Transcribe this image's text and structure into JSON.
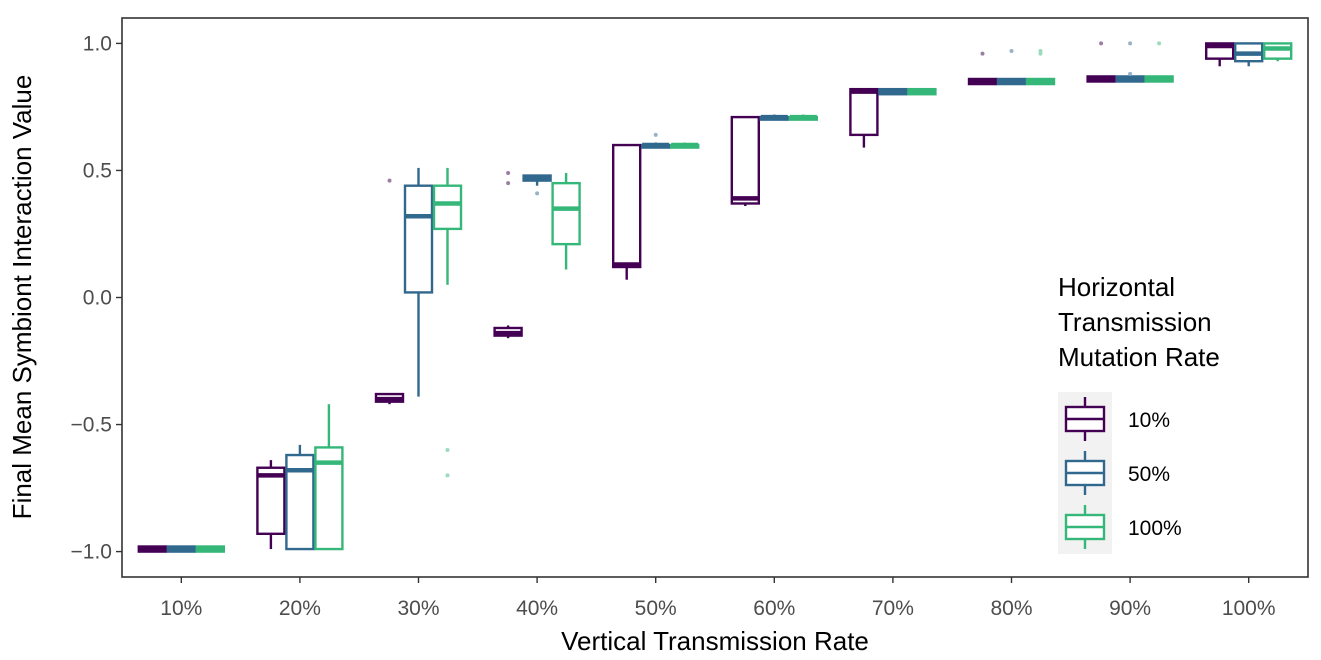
{
  "chart_data": {
    "type": "box",
    "xlabel": "Vertical Transmission Rate",
    "ylabel": "Final Mean Symbiont Interaction Value",
    "categories": [
      "10%",
      "20%",
      "30%",
      "40%",
      "50%",
      "60%",
      "70%",
      "80%",
      "90%",
      "100%"
    ],
    "ylim": [
      -1.1,
      1.1
    ],
    "yticks": [
      -1.0,
      -0.5,
      0.0,
      0.5,
      1.0
    ],
    "ytick_labels": [
      "−1.0",
      "−0.5",
      "0.0",
      "0.5",
      "1.0"
    ],
    "grid": false,
    "legend": {
      "title_lines": [
        "Horizontal",
        "Transmission",
        "Mutation Rate"
      ],
      "position": "right"
    },
    "series": [
      {
        "name": "10%",
        "color": "#440154",
        "outlier_color": "#9b7fa3",
        "boxes": [
          {
            "whisker_low": -1.0,
            "q1": -1.0,
            "median": -0.99,
            "q3": -0.98,
            "whisker_high": -0.98,
            "outliers": []
          },
          {
            "whisker_low": -0.99,
            "q1": -0.93,
            "median": -0.7,
            "q3": -0.67,
            "whisker_high": -0.64,
            "outliers": []
          },
          {
            "whisker_low": -0.42,
            "q1": -0.41,
            "median": -0.4,
            "q3": -0.38,
            "whisker_high": -0.38,
            "outliers": [
              0.46
            ]
          },
          {
            "whisker_low": -0.16,
            "q1": -0.15,
            "median": -0.14,
            "q3": -0.12,
            "whisker_high": -0.11,
            "outliers": [
              0.45,
              0.49
            ]
          },
          {
            "whisker_low": 0.07,
            "q1": 0.12,
            "median": 0.13,
            "q3": 0.6,
            "whisker_high": 0.6,
            "outliers": []
          },
          {
            "whisker_low": 0.36,
            "q1": 0.37,
            "median": 0.39,
            "q3": 0.71,
            "whisker_high": 0.71,
            "outliers": []
          },
          {
            "whisker_low": 0.59,
            "q1": 0.64,
            "median": 0.81,
            "q3": 0.82,
            "whisker_high": 0.82,
            "outliers": []
          },
          {
            "whisker_low": 0.84,
            "q1": 0.84,
            "median": 0.85,
            "q3": 0.86,
            "whisker_high": 0.86,
            "outliers": [
              0.96
            ]
          },
          {
            "whisker_low": 0.85,
            "q1": 0.85,
            "median": 0.86,
            "q3": 0.87,
            "whisker_high": 0.87,
            "outliers": [
              1.0
            ]
          },
          {
            "whisker_low": 0.91,
            "q1": 0.94,
            "median": 0.99,
            "q3": 1.0,
            "whisker_high": 1.0,
            "outliers": []
          }
        ]
      },
      {
        "name": "50%",
        "color": "#31688e",
        "outlier_color": "#98b3c6",
        "boxes": [
          {
            "whisker_low": -1.0,
            "q1": -1.0,
            "median": -0.99,
            "q3": -0.98,
            "whisker_high": -0.98,
            "outliers": []
          },
          {
            "whisker_low": -0.99,
            "q1": -0.99,
            "median": -0.68,
            "q3": -0.62,
            "whisker_high": -0.58,
            "outliers": []
          },
          {
            "whisker_low": -0.39,
            "q1": 0.02,
            "median": 0.32,
            "q3": 0.44,
            "whisker_high": 0.51,
            "outliers": []
          },
          {
            "whisker_low": 0.44,
            "q1": 0.46,
            "median": 0.47,
            "q3": 0.48,
            "whisker_high": 0.48,
            "outliers": [
              0.41
            ]
          },
          {
            "whisker_low": 0.59,
            "q1": 0.59,
            "median": 0.6,
            "q3": 0.6,
            "whisker_high": 0.61,
            "outliers": [
              0.64
            ]
          },
          {
            "whisker_low": 0.7,
            "q1": 0.7,
            "median": 0.71,
            "q3": 0.71,
            "whisker_high": 0.72,
            "outliers": []
          },
          {
            "whisker_low": 0.8,
            "q1": 0.8,
            "median": 0.81,
            "q3": 0.82,
            "whisker_high": 0.82,
            "outliers": []
          },
          {
            "whisker_low": 0.84,
            "q1": 0.84,
            "median": 0.85,
            "q3": 0.86,
            "whisker_high": 0.86,
            "outliers": [
              0.97
            ]
          },
          {
            "whisker_low": 0.85,
            "q1": 0.85,
            "median": 0.86,
            "q3": 0.87,
            "whisker_high": 0.87,
            "outliers": [
              1.0,
              0.88
            ]
          },
          {
            "whisker_low": 0.91,
            "q1": 0.93,
            "median": 0.96,
            "q3": 1.0,
            "whisker_high": 1.0,
            "outliers": []
          }
        ]
      },
      {
        "name": "100%",
        "color": "#35b779",
        "outlier_color": "#9adbbc",
        "boxes": [
          {
            "whisker_low": -1.0,
            "q1": -1.0,
            "median": -0.99,
            "q3": -0.98,
            "whisker_high": -0.98,
            "outliers": []
          },
          {
            "whisker_low": -0.99,
            "q1": -0.99,
            "median": -0.65,
            "q3": -0.59,
            "whisker_high": -0.42,
            "outliers": []
          },
          {
            "whisker_low": 0.05,
            "q1": 0.27,
            "median": 0.37,
            "q3": 0.44,
            "whisker_high": 0.51,
            "outliers": [
              -0.6,
              -0.7
            ]
          },
          {
            "whisker_low": 0.11,
            "q1": 0.21,
            "median": 0.35,
            "q3": 0.45,
            "whisker_high": 0.49,
            "outliers": []
          },
          {
            "whisker_low": 0.59,
            "q1": 0.59,
            "median": 0.6,
            "q3": 0.6,
            "whisker_high": 0.61,
            "outliers": []
          },
          {
            "whisker_low": 0.7,
            "q1": 0.7,
            "median": 0.71,
            "q3": 0.71,
            "whisker_high": 0.72,
            "outliers": []
          },
          {
            "whisker_low": 0.8,
            "q1": 0.8,
            "median": 0.81,
            "q3": 0.82,
            "whisker_high": 0.82,
            "outliers": []
          },
          {
            "whisker_low": 0.84,
            "q1": 0.84,
            "median": 0.85,
            "q3": 0.86,
            "whisker_high": 0.86,
            "outliers": [
              0.97,
              0.96
            ]
          },
          {
            "whisker_low": 0.85,
            "q1": 0.85,
            "median": 0.86,
            "q3": 0.87,
            "whisker_high": 0.87,
            "outliers": [
              1.0
            ]
          },
          {
            "whisker_low": 0.93,
            "q1": 0.94,
            "median": 0.98,
            "q3": 1.0,
            "whisker_high": 1.0,
            "outliers": []
          }
        ]
      }
    ]
  }
}
